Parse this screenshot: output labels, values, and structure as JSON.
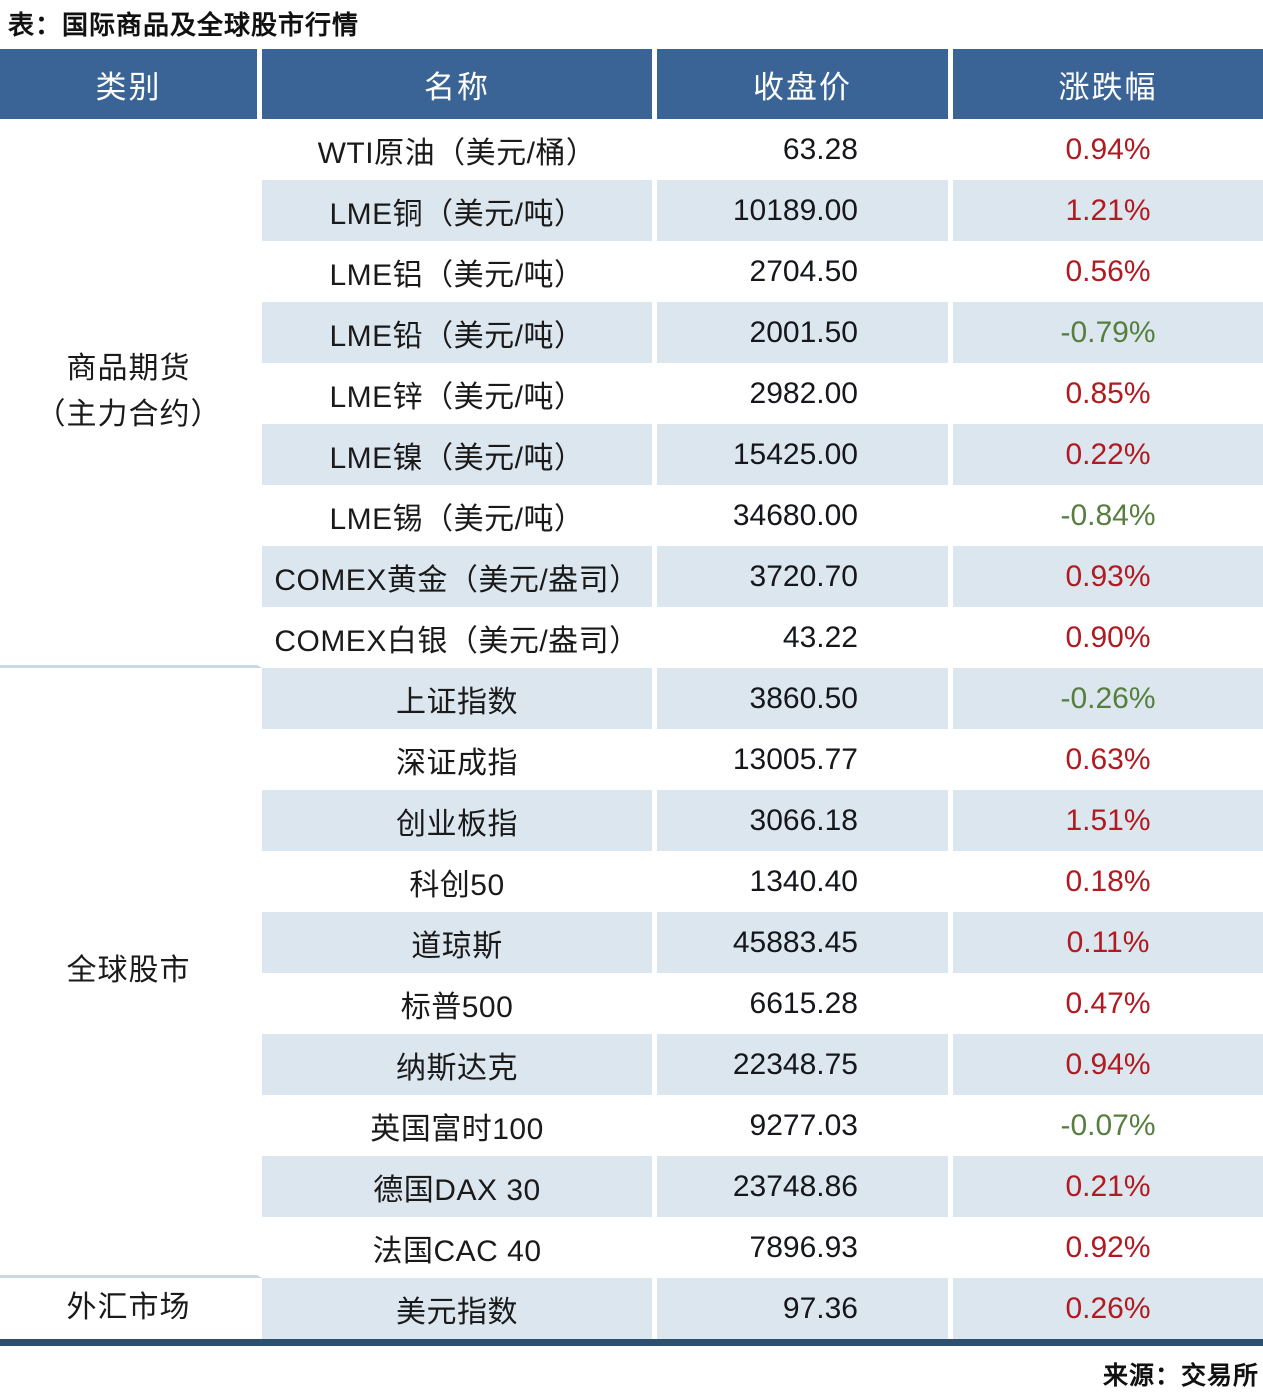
{
  "title": "表：国际商品及全球股市行情",
  "source": "来源：交易所",
  "colors": {
    "header_bg": "#3b6496",
    "row_stripe": "#dce6ef",
    "up_red": "#b11a21",
    "down_green": "#567f3e",
    "section_divider": "#ccd7e2",
    "bottom_border": "#2d506f"
  },
  "table": {
    "headers": {
      "category": "类别",
      "name": "名称",
      "close": "收盘价",
      "change": "涨跌幅"
    },
    "categories": {
      "commodities": "商品期货\n（主力合约）",
      "stocks": "全球股市",
      "forex": "外汇市场"
    },
    "rows": [
      {
        "name": "WTI原油（美元/桶）",
        "close": "63.28",
        "change": "0.94%",
        "dir": "up"
      },
      {
        "name": "LME铜（美元/吨）",
        "close": "10189.00",
        "change": "1.21%",
        "dir": "up"
      },
      {
        "name": "LME铝（美元/吨）",
        "close": "2704.50",
        "change": "0.56%",
        "dir": "up"
      },
      {
        "name": "LME铅（美元/吨）",
        "close": "2001.50",
        "change": "-0.79%",
        "dir": "down"
      },
      {
        "name": "LME锌（美元/吨）",
        "close": "2982.00",
        "change": "0.85%",
        "dir": "up"
      },
      {
        "name": "LME镍（美元/吨）",
        "close": "15425.00",
        "change": "0.22%",
        "dir": "up"
      },
      {
        "name": "LME锡（美元/吨）",
        "close": "34680.00",
        "change": "-0.84%",
        "dir": "down"
      },
      {
        "name": "COMEX黄金（美元/盎司）",
        "close": "3720.70",
        "change": "0.93%",
        "dir": "up"
      },
      {
        "name": "COMEX白银（美元/盎司）",
        "close": "43.22",
        "change": "0.90%",
        "dir": "up"
      },
      {
        "name": "上证指数",
        "close": "3860.50",
        "change": "-0.26%",
        "dir": "down"
      },
      {
        "name": "深证成指",
        "close": "13005.77",
        "change": "0.63%",
        "dir": "up"
      },
      {
        "name": "创业板指",
        "close": "3066.18",
        "change": "1.51%",
        "dir": "up"
      },
      {
        "name": "科创50",
        "close": "1340.40",
        "change": "0.18%",
        "dir": "up"
      },
      {
        "name": "道琼斯",
        "close": "45883.45",
        "change": "0.11%",
        "dir": "up"
      },
      {
        "name": "标普500",
        "close": "6615.28",
        "change": "0.47%",
        "dir": "up"
      },
      {
        "name": "纳斯达克",
        "close": "22348.75",
        "change": "0.94%",
        "dir": "up"
      },
      {
        "name": "英国富时100",
        "close": "9277.03",
        "change": "-0.07%",
        "dir": "down"
      },
      {
        "name": "德国DAX 30",
        "close": "23748.86",
        "change": "0.21%",
        "dir": "up"
      },
      {
        "name": "法国CAC 40",
        "close": "7896.93",
        "change": "0.92%",
        "dir": "up"
      },
      {
        "name": "美元指数",
        "close": "97.36",
        "change": "0.26%",
        "dir": "up"
      }
    ]
  },
  "chart_data": {
    "type": "table",
    "title": "表：国际商品及全球股市行情",
    "columns": [
      "类别",
      "名称",
      "收盘价",
      "涨跌幅"
    ],
    "rows": [
      [
        "商品期货（主力合约）",
        "WTI原油（美元/桶）",
        63.28,
        "0.94%"
      ],
      [
        "商品期货（主力合约）",
        "LME铜（美元/吨）",
        10189.0,
        "1.21%"
      ],
      [
        "商品期货（主力合约）",
        "LME铝（美元/吨）",
        2704.5,
        "0.56%"
      ],
      [
        "商品期货（主力合约）",
        "LME铅（美元/吨）",
        2001.5,
        "-0.79%"
      ],
      [
        "商品期货（主力合约）",
        "LME锌（美元/吨）",
        2982.0,
        "0.85%"
      ],
      [
        "商品期货（主力合约）",
        "LME镍（美元/吨）",
        15425.0,
        "0.22%"
      ],
      [
        "商品期货（主力合约）",
        "LME锡（美元/吨）",
        34680.0,
        "-0.84%"
      ],
      [
        "商品期货（主力合约）",
        "COMEX黄金（美元/盎司）",
        3720.7,
        "0.93%"
      ],
      [
        "商品期货（主力合约）",
        "COMEX白银（美元/盎司）",
        43.22,
        "0.90%"
      ],
      [
        "全球股市",
        "上证指数",
        3860.5,
        "-0.26%"
      ],
      [
        "全球股市",
        "深证成指",
        13005.77,
        "0.63%"
      ],
      [
        "全球股市",
        "创业板指",
        3066.18,
        "1.51%"
      ],
      [
        "全球股市",
        "科创50",
        1340.4,
        "0.18%"
      ],
      [
        "全球股市",
        "道琼斯",
        45883.45,
        "0.11%"
      ],
      [
        "全球股市",
        "标普500",
        6615.28,
        "0.47%"
      ],
      [
        "全球股市",
        "纳斯达克",
        22348.75,
        "0.94%"
      ],
      [
        "全球股市",
        "英国富时100",
        9277.03,
        "-0.07%"
      ],
      [
        "全球股市",
        "德国DAX 30",
        23748.86,
        "0.21%"
      ],
      [
        "全球股市",
        "法国CAC 40",
        7896.93,
        "0.92%"
      ],
      [
        "外汇市场",
        "美元指数",
        97.36,
        "0.26%"
      ]
    ],
    "notes": "来源：交易所; 涨跌幅 positive=red(#b11a21), negative=green(#567f3e); striped rows #dce6ef"
  }
}
